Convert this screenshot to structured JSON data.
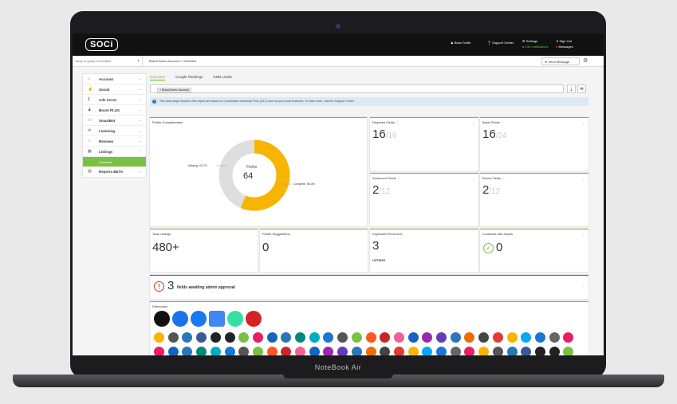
{
  "device": {
    "brand": "NoteBook Air"
  },
  "topbar": {
    "logo": "SOCi",
    "user": "Beau Smith",
    "support": "Support Center",
    "settings": "Settings",
    "notifications": "133 notifications",
    "signout": "Sign Out",
    "messages": "Messages"
  },
  "subbar": {
    "jump_placeholder": "Jump to group or location",
    "breadcrumb": "Brand Demo Account > Overview",
    "send_message": "Send Message"
  },
  "sidebar": {
    "items": [
      {
        "label": "Account",
        "icon": "home-icon"
      },
      {
        "label": "Social",
        "icon": "thumbs-up-icon"
      },
      {
        "label": "Ads ACoS",
        "icon": "dollar-icon"
      },
      {
        "label": "Boost PLUS",
        "icon": "person-icon"
      },
      {
        "label": "SmartBot",
        "icon": "chat-icon"
      },
      {
        "label": "Listening",
        "icon": "chat-bubble-icon"
      },
      {
        "label": "Reviews",
        "icon": "star-icon"
      },
      {
        "label": "Listings",
        "icon": "building-icon"
      }
    ],
    "sub_item": "Overview",
    "reports": {
      "label": "Reports BETA",
      "icon": "chart-icon"
    }
  },
  "tabs": [
    "Overview",
    "Google Rankings",
    "GMB Leads"
  ],
  "filter_chip": "× Brand Demo Account",
  "info_text": "This data range results in this report are based on Coordinated Universal Time (UTC) and not your local timezone. To learn more, visit the Support Center.",
  "profile_completeness": {
    "title": "Profile Completeness",
    "center_label": "Fields",
    "center_value": "64",
    "missing_label": "Missing: 43.7%",
    "complete_label": "Complete: 56.3%",
    "complete_fraction": 0.563,
    "colors": {
      "complete": "#f7b500",
      "missing": "#dedede"
    }
  },
  "field_cards": [
    {
      "title": "Required Fields",
      "value": "16",
      "denom": "/16"
    },
    {
      "title": "Basic Fields",
      "value": "16",
      "denom": "/24"
    },
    {
      "title": "Advanced Fields",
      "value": "2",
      "denom": "/12"
    },
    {
      "title": "Bonus Fields",
      "value": "2",
      "denom": "/12"
    }
  ],
  "stat_cards": [
    {
      "title": "Total Listings",
      "value": "480+"
    },
    {
      "title": "Profile Suggestions",
      "value": "0"
    },
    {
      "title": "Duplicates Removed",
      "value": "3",
      "sub": "LISTINGS"
    },
    {
      "title": "Locations with Issues",
      "value": "0"
    }
  ],
  "approval": {
    "count": "3",
    "text": "fields awaiting admin approval"
  },
  "directories": {
    "title": "Directories",
    "row1": [
      {
        "icon": "apple-icon",
        "color": "#111111"
      },
      {
        "icon": "bing-icon",
        "color": "#1a73e8"
      },
      {
        "icon": "facebook-icon",
        "color": "#1877f2"
      },
      {
        "icon": "google-my-business-icon",
        "color": "#4285f4"
      },
      {
        "icon": "tripadvisor-icon",
        "color": "#34e0a1"
      },
      {
        "icon": "yelp-icon",
        "color": "#d32323"
      }
    ],
    "row2_colors": [
      "#f7b500",
      "#555555",
      "#2a76b8",
      "#3b5998",
      "#222222",
      "#222222",
      "#7ac143",
      "#e91e63",
      "#1565c0",
      "#2a76b8",
      "#00897b",
      "#00acc1",
      "#1976d2",
      "#555555",
      "#7ac143",
      "#ff5722",
      "#c62828",
      "#f06292",
      "#1565c0",
      "#9c27b0",
      "#673ab7",
      "#2a76b8",
      "#ef6c00",
      "#444444",
      "#e53935",
      "#f7b500",
      "#03a9f4",
      "#1976d2",
      "#666666",
      "#e91e63"
    ]
  }
}
